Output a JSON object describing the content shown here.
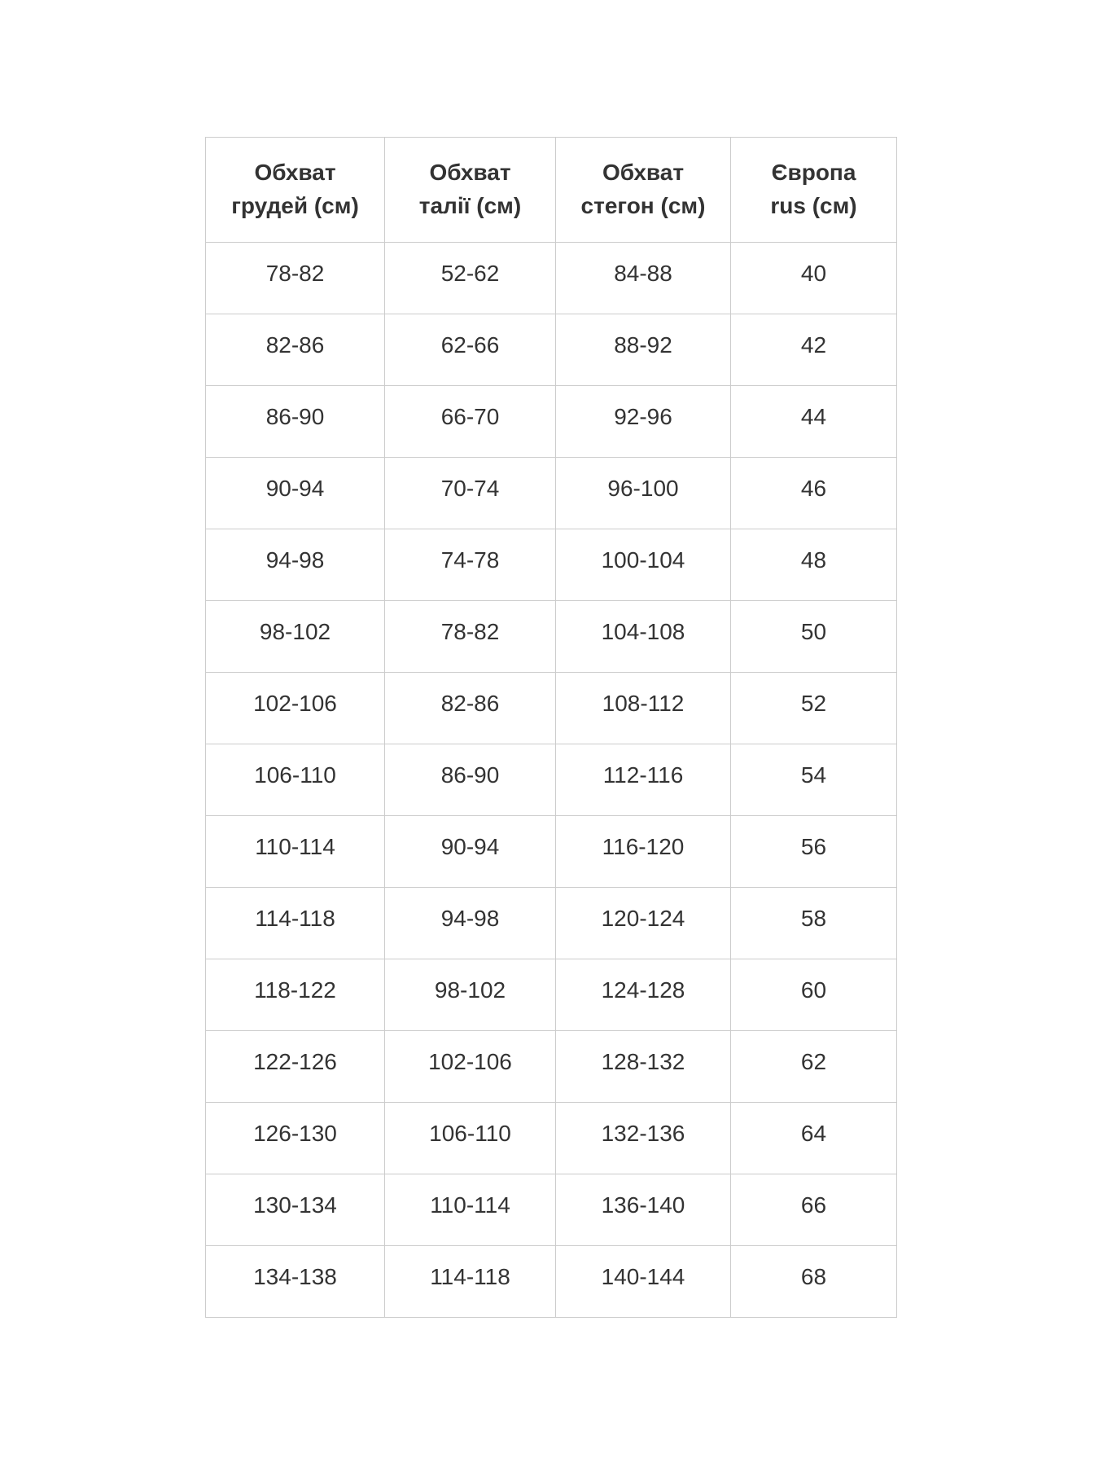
{
  "page": {
    "background_color": "#ffffff"
  },
  "table": {
    "title": "size-chart",
    "text_color": "#333333",
    "border_color": "#cccccc",
    "headers": [
      "Обхват\nгрудей (см)",
      "Обхват\nталії (см)",
      "Обхват\nстегон (см)",
      "Європа\nrus (см)"
    ],
    "rows": [
      [
        "78-82",
        "52-62",
        "84-88",
        "40"
      ],
      [
        "82-86",
        "62-66",
        "88-92",
        "42"
      ],
      [
        "86-90",
        "66-70",
        "92-96",
        "44"
      ],
      [
        "90-94",
        "70-74",
        "96-100",
        "46"
      ],
      [
        "94-98",
        "74-78",
        "100-104",
        "48"
      ],
      [
        "98-102",
        "78-82",
        "104-108",
        "50"
      ],
      [
        "102-106",
        "82-86",
        "108-112",
        "52"
      ],
      [
        "106-110",
        "86-90",
        "112-116",
        "54"
      ],
      [
        "110-114",
        "90-94",
        "116-120",
        "56"
      ],
      [
        "114-118",
        "94-98",
        "120-124",
        "58"
      ],
      [
        "118-122",
        "98-102",
        "124-128",
        "60"
      ],
      [
        "122-126",
        "102-106",
        "128-132",
        "62"
      ],
      [
        "126-130",
        "106-110",
        "132-136",
        "64"
      ],
      [
        "130-134",
        "110-114",
        "136-140",
        "66"
      ],
      [
        "134-138",
        "114-118",
        "140-144",
        "68"
      ]
    ]
  }
}
